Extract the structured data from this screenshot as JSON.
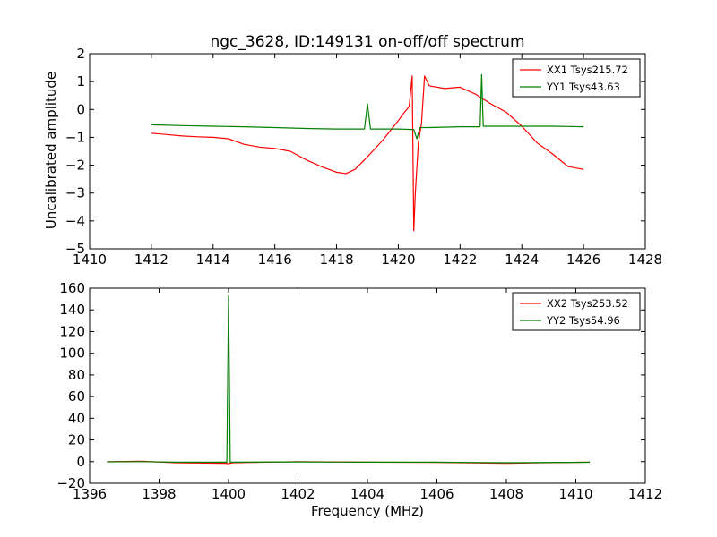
{
  "figure": {
    "title": "ngc_3628, ID:149131 on-off/off spectrum"
  },
  "chart_data": [
    {
      "type": "line",
      "title": "ngc_3628, ID:149131 on-off/off spectrum",
      "xlabel": "",
      "ylabel": "Uncalibrated amplitude",
      "xlim": [
        1410,
        1428
      ],
      "ylim": [
        -5,
        2
      ],
      "xticks": [
        "1410",
        "1412",
        "1414",
        "1416",
        "1418",
        "1420",
        "1422",
        "1424",
        "1426",
        "1428"
      ],
      "yticks": [
        "−5",
        "−4",
        "−3",
        "−2",
        "−1",
        "0",
        "1",
        "2"
      ],
      "grid": false,
      "legend_position": "top-right",
      "series": [
        {
          "name": "XX1 Tsys215.72",
          "color": "#ff0000",
          "points": [
            [
              1412.0,
              -0.85
            ],
            [
              1412.5,
              -0.9
            ],
            [
              1413.0,
              -0.95
            ],
            [
              1413.5,
              -0.98
            ],
            [
              1414.0,
              -1.0
            ],
            [
              1414.5,
              -1.05
            ],
            [
              1415.0,
              -1.25
            ],
            [
              1415.5,
              -1.35
            ],
            [
              1416.0,
              -1.4
            ],
            [
              1416.5,
              -1.5
            ],
            [
              1417.0,
              -1.8
            ],
            [
              1417.5,
              -2.05
            ],
            [
              1418.0,
              -2.25
            ],
            [
              1418.3,
              -2.3
            ],
            [
              1418.6,
              -2.15
            ],
            [
              1419.0,
              -1.7
            ],
            [
              1419.5,
              -1.1
            ],
            [
              1420.0,
              -0.4
            ],
            [
              1420.2,
              -0.1
            ],
            [
              1420.35,
              0.1
            ],
            [
              1420.45,
              1.2
            ],
            [
              1420.5,
              -4.35
            ],
            [
              1420.55,
              -3.0
            ],
            [
              1420.65,
              -1.2
            ],
            [
              1420.75,
              -0.5
            ],
            [
              1420.85,
              1.2
            ],
            [
              1421.0,
              0.85
            ],
            [
              1421.5,
              0.75
            ],
            [
              1422.0,
              0.8
            ],
            [
              1422.5,
              0.55
            ],
            [
              1423.0,
              0.2
            ],
            [
              1423.5,
              -0.1
            ],
            [
              1424.0,
              -0.6
            ],
            [
              1424.5,
              -1.2
            ],
            [
              1425.0,
              -1.6
            ],
            [
              1425.5,
              -2.05
            ],
            [
              1426.0,
              -2.15
            ]
          ]
        },
        {
          "name": "YY1 Tsys43.63",
          "color": "#008000",
          "points": [
            [
              1412.0,
              -0.55
            ],
            [
              1413.0,
              -0.58
            ],
            [
              1414.0,
              -0.6
            ],
            [
              1415.0,
              -0.62
            ],
            [
              1416.0,
              -0.65
            ],
            [
              1417.0,
              -0.68
            ],
            [
              1418.0,
              -0.7
            ],
            [
              1418.9,
              -0.7
            ],
            [
              1419.0,
              0.2
            ],
            [
              1419.1,
              -0.7
            ],
            [
              1420.0,
              -0.7
            ],
            [
              1420.5,
              -0.72
            ],
            [
              1420.6,
              -1.05
            ],
            [
              1420.7,
              -0.65
            ],
            [
              1421.0,
              -0.65
            ],
            [
              1422.0,
              -0.62
            ],
            [
              1422.65,
              -0.62
            ],
            [
              1422.7,
              1.25
            ],
            [
              1422.75,
              -0.6
            ],
            [
              1423.0,
              -0.6
            ],
            [
              1424.0,
              -0.6
            ],
            [
              1425.0,
              -0.6
            ],
            [
              1426.0,
              -0.62
            ]
          ]
        }
      ]
    },
    {
      "type": "line",
      "title": "",
      "xlabel": "Frequency (MHz)",
      "ylabel": "",
      "xlim": [
        1396,
        1412
      ],
      "ylim": [
        -20,
        160
      ],
      "xticks": [
        "1396",
        "1398",
        "1400",
        "1402",
        "1404",
        "1406",
        "1408",
        "1410",
        "1412"
      ],
      "yticks": [
        "−20",
        "0",
        "20",
        "40",
        "60",
        "80",
        "100",
        "120",
        "140",
        "160"
      ],
      "grid": false,
      "legend_position": "top-right",
      "series": [
        {
          "name": "XX2 Tsys253.52",
          "color": "#ff0000",
          "points": [
            [
              1396.5,
              0.0
            ],
            [
              1397.5,
              0.3
            ],
            [
              1398.5,
              -1.0
            ],
            [
              1399.9,
              -1.5
            ],
            [
              1400.0,
              -1.8
            ],
            [
              1400.1,
              -1.0
            ],
            [
              1402.0,
              0.0
            ],
            [
              1404.0,
              -0.5
            ],
            [
              1406.0,
              -0.8
            ],
            [
              1408.0,
              -1.5
            ],
            [
              1409.0,
              -1.0
            ],
            [
              1410.4,
              -0.5
            ]
          ]
        },
        {
          "name": "YY2 Tsys54.96",
          "color": "#008000",
          "points": [
            [
              1396.5,
              -0.2
            ],
            [
              1397.5,
              0.0
            ],
            [
              1398.5,
              -0.5
            ],
            [
              1399.95,
              -0.5
            ],
            [
              1400.0,
              153.0
            ],
            [
              1400.05,
              -0.5
            ],
            [
              1402.0,
              -0.3
            ],
            [
              1404.0,
              -0.5
            ],
            [
              1406.0,
              -0.5
            ],
            [
              1408.0,
              -1.0
            ],
            [
              1410.4,
              -0.6
            ]
          ]
        }
      ]
    }
  ]
}
